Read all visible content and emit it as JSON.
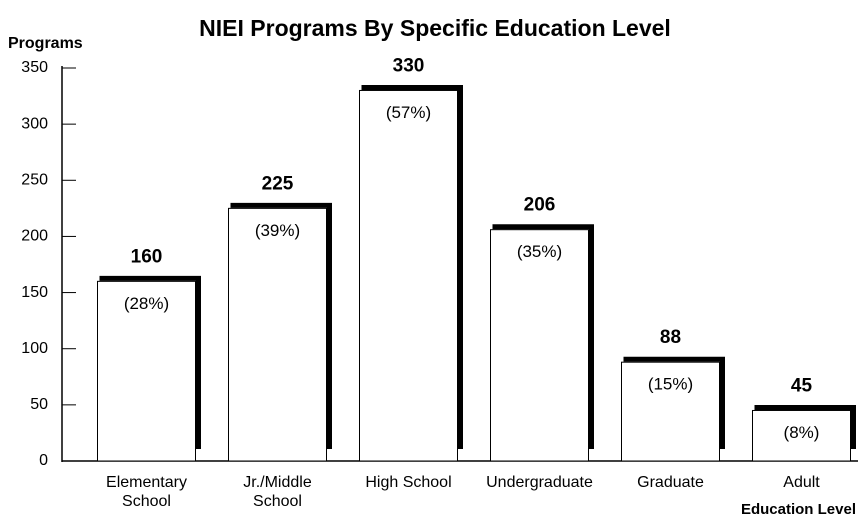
{
  "chart_data": {
    "type": "bar",
    "title": "NIEI Programs By Specific Education Level",
    "y_label": "Programs",
    "x_label": "Education Level",
    "categories": [
      "Elementary\nSchool",
      "Jr./Middle\nSchool",
      "High School",
      "Undergraduate",
      "Graduate",
      "Adult"
    ],
    "values": [
      160,
      225,
      330,
      206,
      88,
      45
    ],
    "share_labels": [
      "(28%)",
      "(39%)",
      "(57%)",
      "(35%)",
      "(15%)",
      "(8%)"
    ],
    "color": "#ffffff",
    "shadow_color": "#000000",
    "ylim": [
      0,
      350
    ],
    "yticks": [
      0,
      50,
      100,
      150,
      200,
      250,
      300,
      350
    ],
    "grid": false
  }
}
